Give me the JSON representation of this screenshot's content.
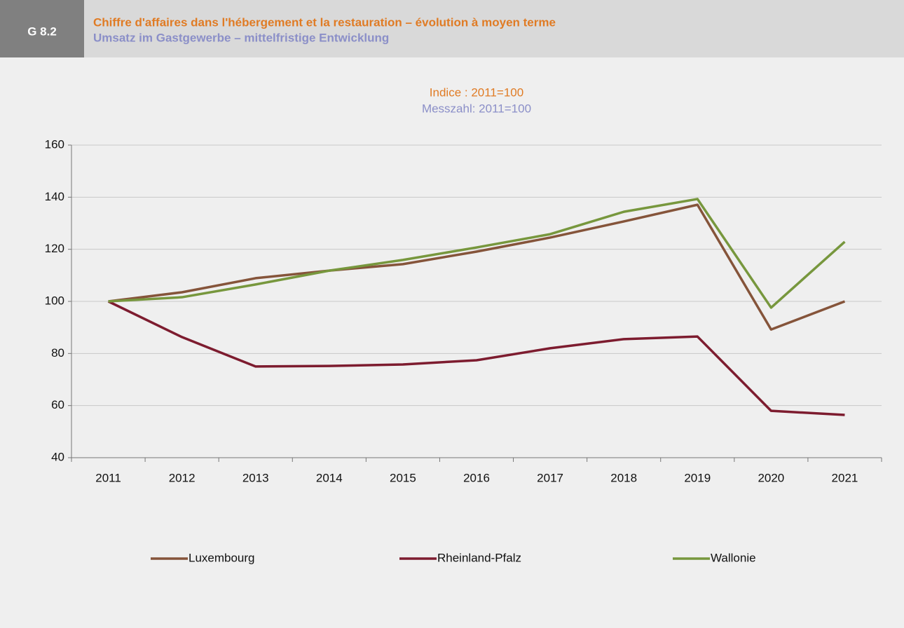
{
  "header": {
    "label": "G 8.2",
    "title": "Chiffre d'affaires dans l'hébergement et la restauration – évolution à moyen terme",
    "subtitle": "Umsatz im Gastgewerbe – mittelfristige Entwicklung"
  },
  "chart_data": {
    "type": "line",
    "title": "Indice : 2011=100",
    "subtitle": "Messzahl: 2011=100",
    "categories": [
      "2011",
      "2012",
      "2013",
      "2014",
      "2015",
      "2016",
      "2017",
      "2018",
      "2019",
      "2020",
      "2021"
    ],
    "series": [
      {
        "name": "Luxembourg",
        "color": "#85543a",
        "values": [
          100,
          103.5,
          108.9,
          111.8,
          114.3,
          119.1,
          124.5,
          130.7,
          137.1,
          89.2,
          100
        ]
      },
      {
        "name": "Rheinland-Pfalz",
        "color": "#7d1c2f",
        "values": [
          100,
          86.3,
          75,
          75.2,
          75.8,
          77.4,
          82,
          85.5,
          86.5,
          58,
          56.4
        ]
      },
      {
        "name": "Wallonie",
        "color": "#77973d",
        "values": [
          100,
          101.6,
          106.5,
          111.8,
          115.9,
          120.7,
          125.8,
          134.4,
          139.3,
          97.6,
          122.9
        ]
      }
    ],
    "ylim": [
      40,
      160
    ],
    "yticks": [
      40,
      60,
      80,
      100,
      120,
      140,
      160
    ],
    "grid": true,
    "legend": "bottom"
  }
}
